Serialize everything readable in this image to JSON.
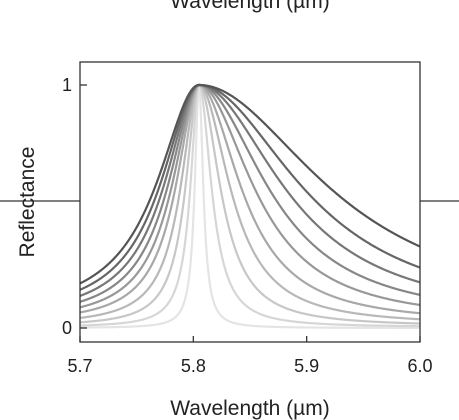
{
  "top_fragment_text": "Wavelength (µm)",
  "chart_data": {
    "type": "line",
    "xlabel": "Wavelength (µm)",
    "ylabel": "Reflectance",
    "xlim": [
      5.7,
      6.0
    ],
    "ylim": [
      0,
      1
    ],
    "x_ticks": [
      5.7,
      5.8,
      5.9,
      6.0
    ],
    "x_tick_labels": [
      "5.7",
      "5.8",
      "5.9",
      "6.0"
    ],
    "y_ticks": [
      0,
      1
    ],
    "y_tick_labels": [
      "0",
      "1"
    ],
    "grid": false,
    "legend": "none",
    "resonance_center": 5.805,
    "series": [
      {
        "gamma_left": 0.0045,
        "gamma_right": 0.0045,
        "baseline": 0.0,
        "color": "#e4e4e4"
      },
      {
        "gamma_left": 0.009,
        "gamma_right": 0.013,
        "baseline": 0.003,
        "color": "#d6d6d6"
      },
      {
        "gamma_left": 0.014,
        "gamma_right": 0.022,
        "baseline": 0.006,
        "color": "#c7c7c7"
      },
      {
        "gamma_left": 0.019,
        "gamma_right": 0.032,
        "baseline": 0.01,
        "color": "#b8b8b8"
      },
      {
        "gamma_left": 0.024,
        "gamma_right": 0.043,
        "baseline": 0.015,
        "color": "#a8a8a8"
      },
      {
        "gamma_left": 0.028,
        "gamma_right": 0.056,
        "baseline": 0.02,
        "color": "#989898"
      },
      {
        "gamma_left": 0.032,
        "gamma_right": 0.07,
        "baseline": 0.025,
        "color": "#878787"
      },
      {
        "gamma_left": 0.036,
        "gamma_right": 0.086,
        "baseline": 0.03,
        "color": "#777777"
      },
      {
        "gamma_left": 0.04,
        "gamma_right": 0.104,
        "baseline": 0.035,
        "color": "#666666"
      },
      {
        "gamma_left": 0.044,
        "gamma_right": 0.13,
        "baseline": 0.04,
        "color": "#555555"
      }
    ]
  }
}
